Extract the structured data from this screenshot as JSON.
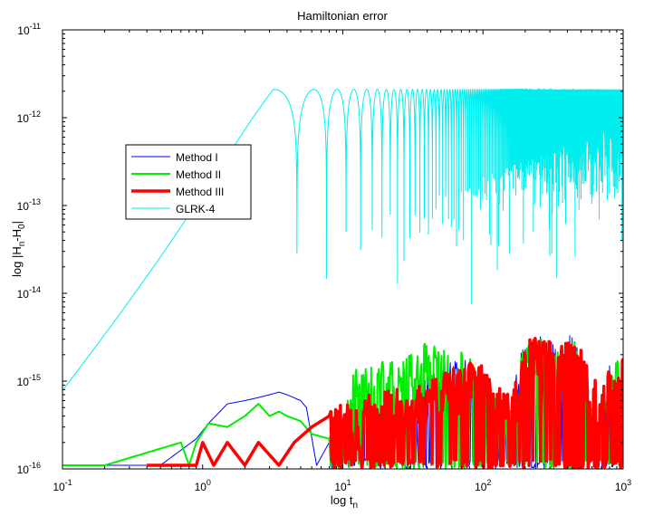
{
  "chart_data": {
    "type": "line",
    "title": "Hamiltonian error",
    "xlabel": {
      "base": "log t",
      "sub": "n"
    },
    "ylabel": {
      "parts": [
        "log |H",
        "n",
        "-H",
        "0",
        "|"
      ]
    },
    "x_scale": "log",
    "y_scale": "log",
    "xlim": [
      0.1,
      1000
    ],
    "ylim": [
      1e-16,
      1e-11
    ],
    "grid": false,
    "legend_position": "upper-left (inside plot)",
    "x_ticks": [
      {
        "value": 0.1,
        "base": "10",
        "exp": "-1"
      },
      {
        "value": 1,
        "base": "10",
        "exp": "0"
      },
      {
        "value": 10,
        "base": "10",
        "exp": "1"
      },
      {
        "value": 100,
        "base": "10",
        "exp": "2"
      },
      {
        "value": 1000,
        "base": "10",
        "exp": "3"
      }
    ],
    "y_ticks": [
      {
        "value": 1e-16,
        "base": "10",
        "exp": "-16"
      },
      {
        "value": 1e-15,
        "base": "10",
        "exp": "-15"
      },
      {
        "value": 1e-14,
        "base": "10",
        "exp": "-14"
      },
      {
        "value": 1e-13,
        "base": "10",
        "exp": "-13"
      },
      {
        "value": 1e-12,
        "base": "10",
        "exp": "-12"
      },
      {
        "value": 1e-11,
        "base": "10",
        "exp": "-11"
      }
    ],
    "series": [
      {
        "name": "Method I",
        "color": "#0000ff",
        "stroke": "thin",
        "points": [
          [
            0.1,
            1.1e-16
          ],
          [
            0.2,
            1.1e-16
          ],
          [
            0.3,
            1.1e-16
          ],
          [
            0.5,
            1.1e-16
          ],
          [
            0.9,
            2.2e-16
          ],
          [
            1.1,
            3.3e-16
          ],
          [
            1.5,
            5.5e-16
          ],
          [
            2,
            6e-16
          ],
          [
            2.5,
            6.5e-16
          ],
          [
            3,
            7e-16
          ],
          [
            3.5,
            7.5e-16
          ],
          [
            4,
            7e-16
          ],
          [
            5,
            6e-16
          ],
          [
            5.5,
            5e-16
          ],
          [
            6.5,
            1.1e-16
          ],
          [
            8,
            2e-16
          ],
          [
            10,
            3e-16
          ],
          [
            12,
            6e-16
          ],
          [
            14,
            5e-16
          ],
          [
            17,
            4e-16
          ],
          [
            20,
            5e-16
          ],
          [
            25,
            3e-16
          ],
          [
            30,
            1.1e-16
          ],
          [
            40,
            1.2e-15
          ],
          [
            50,
            1.6e-15
          ],
          [
            60,
            1.3e-15
          ],
          [
            70,
            1.6e-15
          ],
          [
            80,
            1.4e-15
          ],
          [
            100,
            1e-15
          ],
          [
            120,
            4e-16
          ],
          [
            150,
            3e-16
          ],
          [
            180,
            1.5e-15
          ],
          [
            200,
            2.2e-15
          ],
          [
            250,
            2.8e-15
          ],
          [
            300,
            2.4e-15
          ],
          [
            350,
            1.8e-15
          ],
          [
            400,
            2.6e-15
          ],
          [
            450,
            3e-15
          ],
          [
            500,
            1.2e-15
          ],
          [
            600,
            4e-16
          ],
          [
            700,
            1.2e-16
          ],
          [
            800,
            2e-15
          ],
          [
            900,
            5e-16
          ],
          [
            1000,
            1.5e-16
          ]
        ]
      },
      {
        "name": "Method II",
        "color": "#00ee00",
        "stroke": "medium",
        "points": [
          [
            0.1,
            1.1e-16
          ],
          [
            0.2,
            1.1e-16
          ],
          [
            0.7,
            2e-16
          ],
          [
            0.8,
            1.1e-16
          ],
          [
            0.9,
            2e-16
          ],
          [
            1.1,
            3.3e-16
          ],
          [
            1.5,
            3e-16
          ],
          [
            2,
            4e-16
          ],
          [
            2.5,
            5.5e-16
          ],
          [
            3,
            4e-16
          ],
          [
            3.5,
            4.5e-16
          ],
          [
            4,
            4e-16
          ],
          [
            5,
            3.5e-16
          ],
          [
            6,
            2.5e-16
          ],
          [
            8,
            2.2e-16
          ],
          [
            10,
            4e-16
          ],
          [
            12,
            1.1e-15
          ],
          [
            14,
            1.3e-15
          ],
          [
            17,
            1.1e-15
          ],
          [
            20,
            1.5e-15
          ],
          [
            25,
            1.3e-15
          ],
          [
            30,
            1.8e-15
          ],
          [
            40,
            2.2e-15
          ],
          [
            50,
            2e-15
          ],
          [
            60,
            1.5e-15
          ],
          [
            70,
            1.8e-15
          ],
          [
            80,
            1.5e-15
          ],
          [
            100,
            9e-16
          ],
          [
            120,
            6e-16
          ],
          [
            150,
            3e-16
          ],
          [
            180,
            1.3e-15
          ],
          [
            200,
            2e-15
          ],
          [
            250,
            2.5e-15
          ],
          [
            300,
            2.2e-15
          ],
          [
            350,
            1.7e-15
          ],
          [
            400,
            2e-15
          ],
          [
            450,
            2.4e-15
          ],
          [
            500,
            1.2e-15
          ],
          [
            600,
            5e-16
          ],
          [
            700,
            3e-16
          ],
          [
            800,
            1e-15
          ],
          [
            900,
            1.5e-15
          ],
          [
            1000,
            1.6e-15
          ]
        ]
      },
      {
        "name": "Method III",
        "color": "#ff0000",
        "stroke": "thick",
        "points": [
          [
            0.4,
            1.1e-16
          ],
          [
            0.5,
            1.1e-16
          ],
          [
            0.9,
            1.1e-16
          ],
          [
            1.0,
            2e-16
          ],
          [
            1.2,
            1.1e-16
          ],
          [
            1.5,
            2e-16
          ],
          [
            2,
            1.1e-16
          ],
          [
            2.5,
            2e-16
          ],
          [
            3.5,
            1.1e-16
          ],
          [
            4.5,
            2e-16
          ],
          [
            6,
            3e-16
          ],
          [
            8,
            4e-16
          ],
          [
            10,
            5e-16
          ],
          [
            12,
            3.5e-16
          ],
          [
            15,
            6e-16
          ],
          [
            18,
            4e-16
          ],
          [
            20,
            6e-16
          ],
          [
            25,
            7e-16
          ],
          [
            30,
            6e-16
          ],
          [
            40,
            8e-16
          ],
          [
            50,
            1e-15
          ],
          [
            60,
            1.2e-15
          ],
          [
            70,
            1.1e-15
          ],
          [
            80,
            1.3e-15
          ],
          [
            100,
            1.2e-15
          ],
          [
            120,
            8e-16
          ],
          [
            150,
            6e-16
          ],
          [
            180,
            9e-16
          ],
          [
            200,
            2.1e-15
          ],
          [
            230,
            2.6e-15
          ],
          [
            270,
            2.5e-15
          ],
          [
            300,
            2.3e-15
          ],
          [
            350,
            1.9e-15
          ],
          [
            400,
            2.3e-15
          ],
          [
            450,
            2.3e-15
          ],
          [
            500,
            1.8e-15
          ],
          [
            600,
            1e-15
          ],
          [
            700,
            6e-16
          ],
          [
            800,
            1.2e-15
          ],
          [
            900,
            1.6e-15
          ],
          [
            1000,
            1.8e-15
          ]
        ]
      },
      {
        "name": "GLRK-4",
        "color": "#00eeee",
        "stroke": "thin",
        "peak": 2.1e-12
      }
    ]
  }
}
